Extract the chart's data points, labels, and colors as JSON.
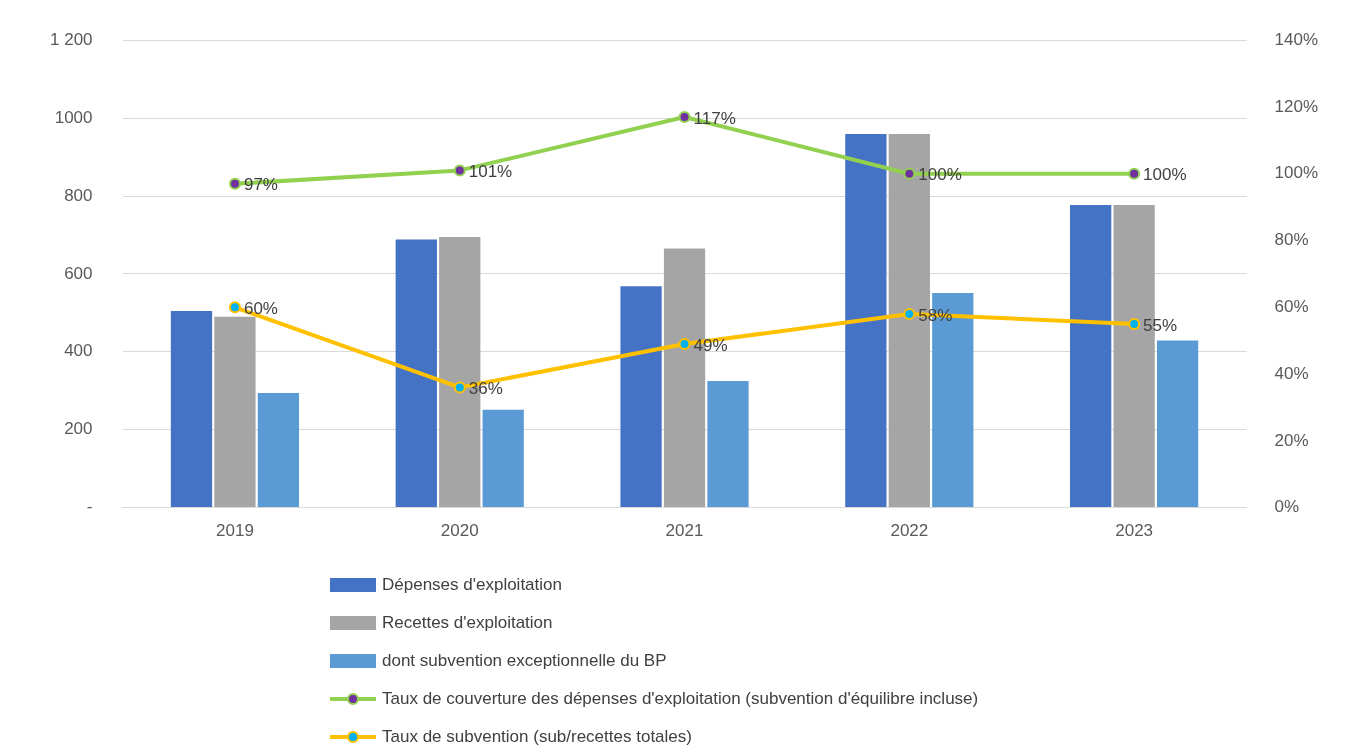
{
  "chart_data": {
    "type": "bar",
    "categories": [
      "2019",
      "2020",
      "2021",
      "2022",
      "2023"
    ],
    "series": [
      {
        "name": "Dépenses d'exploitation",
        "color": "#4472c4",
        "values": [
          505,
          688,
          568,
          959,
          777
        ]
      },
      {
        "name": "Recettes d'exploitation",
        "color": "#a5a5a5",
        "values": [
          490,
          695,
          665,
          959,
          777
        ]
      },
      {
        "name": "dont subvention exceptionnelle du BP",
        "color": "#5b9bd5",
        "values": [
          294,
          251,
          325,
          551,
          429
        ]
      },
      {
        "name": "Taux de couverture des dépenses d'exploitation (subvention d'équilibre incluse)",
        "type": "line",
        "axis": "y2",
        "color": "#92d050",
        "values": [
          97,
          101,
          117,
          100,
          100
        ],
        "value_labels": [
          "97%",
          "101%",
          "117%",
          "100%",
          "100%"
        ]
      },
      {
        "name": "Taux de subvention (sub/recettes totales)",
        "type": "line",
        "axis": "y2",
        "color": "#ffc000",
        "values": [
          60,
          36,
          49,
          58,
          55
        ],
        "value_labels": [
          "60%",
          "36%",
          "49%",
          "58%",
          "55%"
        ]
      }
    ],
    "ylim": [
      0,
      1200
    ],
    "yticks": [
      {
        "value": 0,
        "label": "-"
      },
      200,
      400,
      600,
      800,
      1000,
      {
        "value": 1200,
        "label": "1 200"
      }
    ],
    "y2lim": [
      0,
      140
    ],
    "y2ticks": [
      {
        "value": 0,
        "label": "0%"
      },
      {
        "value": 20,
        "label": "20%"
      },
      {
        "value": 40,
        "label": "40%"
      },
      {
        "value": 60,
        "label": "60%"
      },
      {
        "value": 80,
        "label": "80%"
      },
      {
        "value": 100,
        "label": "100%"
      },
      {
        "value": 120,
        "label": "120%"
      },
      {
        "value": 140,
        "label": "140%"
      }
    ],
    "grid": "y",
    "legend": "bottom",
    "marker": "circle"
  }
}
